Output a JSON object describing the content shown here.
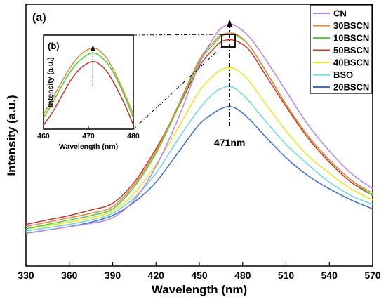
{
  "chart_data": {
    "type": "line",
    "title": "",
    "panel_label": "(a)",
    "xlabel": "Wavelength (nm)",
    "ylabel": "Intensity (a.u.)",
    "xlim": [
      330,
      570
    ],
    "ylim": [
      0,
      1
    ],
    "xticks": [
      330,
      360,
      390,
      420,
      450,
      480,
      510,
      540,
      570
    ],
    "grid": false,
    "legend_position": "top-right",
    "annotation": {
      "text": "471nm",
      "x": 471
    },
    "x": [
      330,
      345,
      360,
      375,
      390,
      405,
      420,
      435,
      450,
      460,
      465,
      471,
      477,
      485,
      495,
      510,
      525,
      540,
      555,
      570
    ],
    "series": [
      {
        "name": "CN",
        "color": "#b983e8",
        "values": [
          0.04,
          0.055,
          0.07,
          0.085,
          0.11,
          0.19,
          0.34,
          0.55,
          0.8,
          0.92,
          0.96,
          0.98,
          0.965,
          0.92,
          0.83,
          0.68,
          0.53,
          0.41,
          0.31,
          0.24
        ]
      },
      {
        "name": "30BSCN",
        "color": "#e08a3c",
        "values": [
          0.07,
          0.09,
          0.11,
          0.13,
          0.16,
          0.26,
          0.41,
          0.61,
          0.82,
          0.9,
          0.93,
          0.94,
          0.93,
          0.88,
          0.78,
          0.62,
          0.48,
          0.37,
          0.28,
          0.22
        ]
      },
      {
        "name": "10BSCN",
        "color": "#4fcf3a",
        "values": [
          0.06,
          0.08,
          0.1,
          0.12,
          0.15,
          0.25,
          0.4,
          0.6,
          0.81,
          0.89,
          0.925,
          0.935,
          0.925,
          0.88,
          0.78,
          0.62,
          0.48,
          0.37,
          0.28,
          0.21
        ]
      },
      {
        "name": "50BSCN",
        "color": "#c0392b",
        "values": [
          0.08,
          0.1,
          0.12,
          0.145,
          0.175,
          0.27,
          0.42,
          0.6,
          0.79,
          0.87,
          0.9,
          0.91,
          0.9,
          0.86,
          0.76,
          0.61,
          0.47,
          0.36,
          0.27,
          0.21
        ]
      },
      {
        "name": "40BSCN",
        "color": "#e6e62a",
        "values": [
          0.06,
          0.075,
          0.09,
          0.11,
          0.14,
          0.22,
          0.35,
          0.51,
          0.68,
          0.75,
          0.775,
          0.785,
          0.77,
          0.72,
          0.63,
          0.5,
          0.39,
          0.31,
          0.24,
          0.19
        ]
      },
      {
        "name": "BSO",
        "color": "#6fd6dd",
        "values": [
          0.05,
          0.065,
          0.08,
          0.1,
          0.13,
          0.2,
          0.31,
          0.46,
          0.6,
          0.67,
          0.69,
          0.7,
          0.68,
          0.63,
          0.55,
          0.44,
          0.35,
          0.27,
          0.21,
          0.17
        ]
      },
      {
        "name": "20BSCN",
        "color": "#3d6fd0",
        "values": [
          0.04,
          0.055,
          0.07,
          0.09,
          0.12,
          0.18,
          0.27,
          0.4,
          0.53,
          0.58,
          0.6,
          0.61,
          0.595,
          0.55,
          0.48,
          0.38,
          0.3,
          0.24,
          0.19,
          0.15
        ]
      }
    ],
    "inset": {
      "panel_label": "(b)",
      "xlabel": "Wavelength (nm)",
      "ylabel": "Intensity (a.u.)",
      "xlim": [
        460,
        480
      ],
      "xticks": [
        460,
        470,
        480
      ],
      "ylim": [
        0,
        1
      ],
      "x": [
        460,
        462,
        464,
        466,
        468,
        470,
        471,
        472,
        474,
        476,
        478,
        480
      ],
      "series": [
        {
          "name": "30BSCN",
          "color": "#e08a3c",
          "values": [
            0.05,
            0.27,
            0.5,
            0.71,
            0.87,
            0.96,
            0.975,
            0.96,
            0.84,
            0.62,
            0.35,
            0.05
          ]
        },
        {
          "name": "10BSCN",
          "color": "#4fcf3a",
          "values": [
            0.0,
            0.21,
            0.44,
            0.65,
            0.8,
            0.89,
            0.905,
            0.89,
            0.78,
            0.58,
            0.31,
            0.0
          ]
        },
        {
          "name": "50BSCN",
          "color": "#c0392b",
          "values": [
            -0.1,
            0.08,
            0.3,
            0.52,
            0.68,
            0.77,
            0.785,
            0.77,
            0.66,
            0.45,
            0.2,
            -0.1
          ]
        }
      ]
    }
  }
}
